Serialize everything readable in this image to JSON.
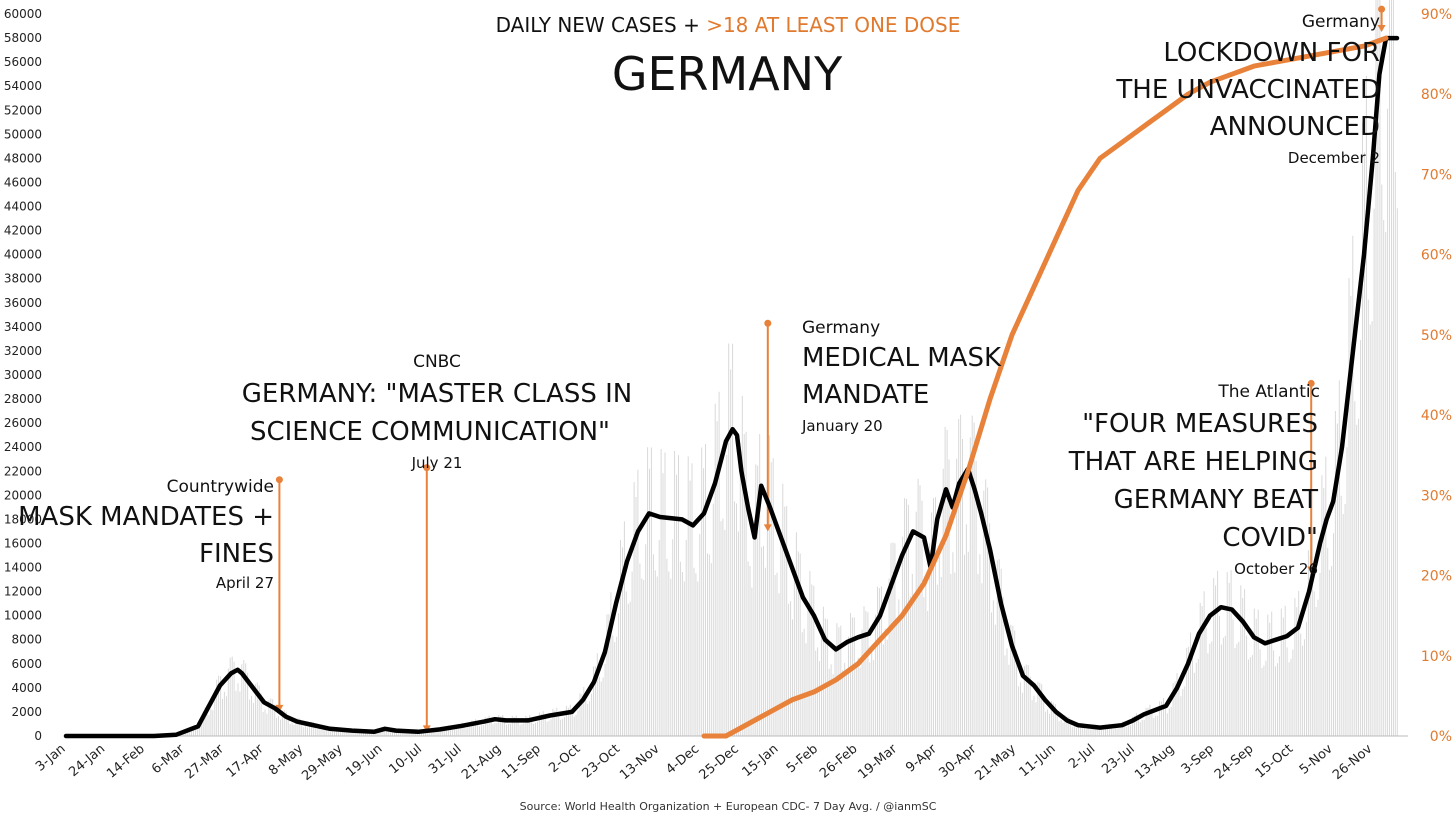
{
  "chart_data": {
    "type": "line",
    "title": "GERMANY",
    "subtitle_prefix": "DAILY NEW CASES + ",
    "subtitle_highlight": ">18 AT LEAST ONE DOSE",
    "source": "Source: World Health Organization + European CDC- 7 Day Avg. / @ianmSC",
    "colors": {
      "cases": "#000000",
      "vaccination": "#e8823a",
      "bars": "#d9d9d9",
      "annotation": "#e8823a"
    },
    "ylim_left": [
      0,
      60000
    ],
    "ylim_right": [
      0,
      90
    ],
    "y_ticks_left": [
      0,
      2000,
      4000,
      6000,
      8000,
      10000,
      12000,
      14000,
      16000,
      18000,
      20000,
      22000,
      24000,
      26000,
      28000,
      30000,
      32000,
      34000,
      36000,
      38000,
      40000,
      42000,
      44000,
      46000,
      48000,
      50000,
      52000,
      54000,
      56000,
      58000,
      60000
    ],
    "y_ticks_right": [
      "0%",
      "10%",
      "20%",
      "30%",
      "40%",
      "50%",
      "60%",
      "70%",
      "80%",
      "90%"
    ],
    "x_tick_labels": [
      "3-Jan",
      "24-Jan",
      "14-Feb",
      "6-Mar",
      "27-Mar",
      "17-Apr",
      "8-May",
      "29-May",
      "19-Jun",
      "10-Jul",
      "31-Jul",
      "21-Aug",
      "11-Sep",
      "2-Oct",
      "23-Oct",
      "13-Nov",
      "4-Dec",
      "25-Dec",
      "15-Jan",
      "5-Feb",
      "26-Feb",
      "19-Mar",
      "9-Apr",
      "30-Apr",
      "21-May",
      "11-Jun",
      "2-Jul",
      "23-Jul",
      "13-Aug",
      "3-Sep",
      "24-Sep",
      "15-Oct",
      "5-Nov",
      "26-Nov"
    ],
    "series": [
      {
        "name": "DAILY NEW CASES",
        "axis": "left",
        "points": [
          [
            0,
            0
          ],
          [
            4,
            0
          ],
          [
            5,
            100
          ],
          [
            6,
            800
          ],
          [
            6.5,
            2500
          ],
          [
            7,
            4200
          ],
          [
            7.5,
            5200
          ],
          [
            7.8,
            5500
          ],
          [
            8,
            5200
          ],
          [
            8.5,
            4000
          ],
          [
            9,
            2800
          ],
          [
            9.5,
            2300
          ],
          [
            10,
            1600
          ],
          [
            10.5,
            1200
          ],
          [
            11,
            1000
          ],
          [
            12,
            600
          ],
          [
            13,
            450
          ],
          [
            14,
            350
          ],
          [
            14.5,
            600
          ],
          [
            15,
            450
          ],
          [
            16,
            350
          ],
          [
            17,
            550
          ],
          [
            18,
            850
          ],
          [
            19,
            1200
          ],
          [
            19.5,
            1400
          ],
          [
            20,
            1300
          ],
          [
            21,
            1300
          ],
          [
            22,
            1700
          ],
          [
            23,
            2000
          ],
          [
            23.5,
            3000
          ],
          [
            24,
            4500
          ],
          [
            24.5,
            7000
          ],
          [
            25,
            11000
          ],
          [
            25.5,
            14500
          ],
          [
            26,
            17000
          ],
          [
            26.5,
            18500
          ],
          [
            27,
            18200
          ],
          [
            28,
            18000
          ],
          [
            28.5,
            17500
          ],
          [
            29,
            18500
          ],
          [
            29.5,
            21000
          ],
          [
            30,
            24500
          ],
          [
            30.3,
            25500
          ],
          [
            30.5,
            25000
          ],
          [
            30.7,
            22000
          ],
          [
            31,
            19000
          ],
          [
            31.3,
            16500
          ],
          [
            31.6,
            20800
          ],
          [
            32,
            19000
          ],
          [
            32.5,
            16500
          ],
          [
            33,
            14000
          ],
          [
            33.5,
            11500
          ],
          [
            34,
            10000
          ],
          [
            34.5,
            8000
          ],
          [
            35,
            7200
          ],
          [
            35.5,
            7800
          ],
          [
            36,
            8200
          ],
          [
            36.5,
            8500
          ],
          [
            37,
            10000
          ],
          [
            37.5,
            12500
          ],
          [
            38,
            15000
          ],
          [
            38.5,
            17000
          ],
          [
            39,
            16500
          ],
          [
            39.3,
            14000
          ],
          [
            39.6,
            18000
          ],
          [
            40,
            20500
          ],
          [
            40.3,
            19000
          ],
          [
            40.6,
            21000
          ],
          [
            41,
            22200
          ],
          [
            41.3,
            20500
          ],
          [
            41.6,
            18500
          ],
          [
            42,
            15500
          ],
          [
            42.5,
            11000
          ],
          [
            43,
            7500
          ],
          [
            43.5,
            5000
          ],
          [
            44,
            4200
          ],
          [
            44.5,
            3000
          ],
          [
            45,
            2000
          ],
          [
            45.5,
            1300
          ],
          [
            46,
            900
          ],
          [
            47,
            700
          ],
          [
            48,
            900
          ],
          [
            48.5,
            1300
          ],
          [
            49,
            1800
          ],
          [
            50,
            2500
          ],
          [
            50.5,
            4000
          ],
          [
            51,
            6000
          ],
          [
            51.5,
            8500
          ],
          [
            52,
            10000
          ],
          [
            52.5,
            10700
          ],
          [
            53,
            10500
          ],
          [
            53.5,
            9500
          ],
          [
            54,
            8200
          ],
          [
            54.5,
            7700
          ],
          [
            55,
            8000
          ],
          [
            55.5,
            8300
          ],
          [
            56,
            9000
          ],
          [
            56.5,
            12000
          ],
          [
            57,
            16000
          ],
          [
            57.3,
            18000
          ],
          [
            57.6,
            19500
          ],
          [
            58,
            24000
          ],
          [
            58.5,
            32000
          ],
          [
            59,
            40000
          ],
          [
            59.4,
            48000
          ],
          [
            59.7,
            55000
          ],
          [
            60,
            58000
          ],
          [
            60.5,
            58000
          ]
        ]
      },
      {
        "name": ">18 AT LEAST ONE DOSE",
        "axis": "right",
        "points": [
          [
            29,
            0
          ],
          [
            30,
            0
          ],
          [
            31,
            1.5
          ],
          [
            32,
            3
          ],
          [
            33,
            4.5
          ],
          [
            34,
            5.5
          ],
          [
            35,
            7
          ],
          [
            36,
            9
          ],
          [
            37,
            12
          ],
          [
            38,
            15
          ],
          [
            39,
            19
          ],
          [
            40,
            25
          ],
          [
            41,
            33
          ],
          [
            42,
            42
          ],
          [
            43,
            50
          ],
          [
            44,
            56
          ],
          [
            45,
            62
          ],
          [
            46,
            68
          ],
          [
            46.5,
            70
          ],
          [
            47,
            72
          ],
          [
            48,
            74
          ],
          [
            49,
            76
          ],
          [
            50,
            78
          ],
          [
            51,
            80
          ],
          [
            52,
            81.5
          ],
          [
            53,
            82.5
          ],
          [
            54,
            83.5
          ],
          [
            55,
            84
          ],
          [
            56,
            84.5
          ],
          [
            57,
            85
          ],
          [
            58,
            85.5
          ],
          [
            59,
            86
          ],
          [
            60,
            87
          ]
        ]
      }
    ],
    "annotations": [
      {
        "source": "Countrywide",
        "headline": [
          "MASK MANDATES +",
          "FINES"
        ],
        "date": "April 27"
      },
      {
        "source": "CNBC",
        "headline": [
          "GERMANY: \"MASTER CLASS IN",
          "SCIENCE COMMUNICATION\""
        ],
        "date": "July 21"
      },
      {
        "source": "Germany",
        "headline": [
          "MEDICAL MASK",
          "MANDATE"
        ],
        "date": "January 20"
      },
      {
        "source": "The Atlantic",
        "headline": [
          "\"FOUR MEASURES",
          "THAT ARE HELPING",
          "GERMANY BEAT",
          "COVID\""
        ],
        "date": "October 26"
      },
      {
        "source": "Germany",
        "headline": [
          "LOCKDOWN FOR",
          "THE UNVACCINATED",
          "ANNOUNCED"
        ],
        "date": "December 2"
      }
    ],
    "annotation_markers": [
      {
        "x": 9.7,
        "top": 21300,
        "bottom": 2000
      },
      {
        "x": 16.4,
        "top": 22300,
        "bottom": 300
      },
      {
        "x": 31.9,
        "top": 34300,
        "bottom": 17000
      },
      {
        "x": 56.6,
        "top": 29300,
        "bottom": 13500
      },
      {
        "x": 59.8,
        "top": 60400,
        "bottom": 58500
      }
    ],
    "grid": false,
    "legend": "none"
  }
}
